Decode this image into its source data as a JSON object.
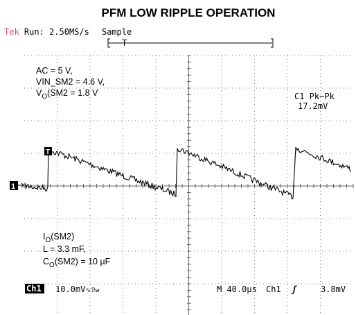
{
  "title": "PFM LOW RIPPLE OPERATION",
  "header": {
    "brand": "Tek",
    "run": "Run: 2.50MS/s",
    "mode": "Sample"
  },
  "trigger_marker": "T",
  "channel_marker": "1",
  "conditions": [
    [
      "AC = 5 V,"
    ],
    [
      "VIN_SM2 = 4.6 V,"
    ],
    [
      "V",
      "O",
      "(SM2 = 1.8 V"
    ]
  ],
  "measurement": {
    "label": "C1 Pk−Pk",
    "value": "17.2mV"
  },
  "components": [
    [
      "I",
      "O",
      "(SM2)"
    ],
    [
      "L = 3.3 mF,"
    ],
    [
      "C",
      "O",
      "(SM2) = 10 µF"
    ]
  ],
  "footer": {
    "channel": "Ch1",
    "scale": "10.0mV",
    "bw": "∿ℬw",
    "timebase": "M 40.0µs",
    "trigger_channel": "Ch1",
    "trigger_slope": "ʃ",
    "trigger_level": "3.8mV"
  }
}
